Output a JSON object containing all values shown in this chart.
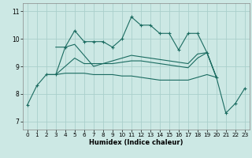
{
  "xlabel": "Humidex (Indice chaleur)",
  "xlim": [
    -0.5,
    23.5
  ],
  "ylim": [
    6.7,
    11.3
  ],
  "yticks": [
    7,
    8,
    9,
    10,
    11
  ],
  "xticks": [
    0,
    1,
    2,
    3,
    4,
    5,
    6,
    7,
    8,
    9,
    10,
    11,
    12,
    13,
    14,
    15,
    16,
    17,
    18,
    19,
    20,
    21,
    22,
    23
  ],
  "bg_color": "#cce8e4",
  "grid_color": "#aacfcb",
  "line_color": "#1a6b60",
  "line1": {
    "x": [
      0,
      1,
      2,
      3,
      4,
      5,
      6,
      7,
      8,
      9,
      10,
      11,
      12,
      13,
      14,
      15,
      16,
      17,
      18,
      19,
      20,
      21,
      22,
      23
    ],
    "y": [
      7.6,
      8.3,
      8.7,
      8.7,
      9.7,
      10.3,
      9.9,
      9.9,
      9.9,
      9.7,
      10.0,
      10.8,
      10.5,
      10.5,
      10.2,
      10.2,
      9.6,
      10.2,
      10.2,
      9.5,
      8.6,
      7.3,
      7.65,
      8.2
    ]
  },
  "line2": {
    "x": [
      2,
      3,
      4,
      5,
      6,
      7,
      8,
      9,
      10,
      11,
      12,
      13,
      14,
      15,
      16,
      17,
      18,
      19,
      20
    ],
    "y": [
      8.7,
      8.7,
      8.75,
      8.75,
      8.75,
      8.7,
      8.7,
      8.7,
      8.65,
      8.65,
      8.6,
      8.55,
      8.5,
      8.5,
      8.5,
      8.5,
      8.6,
      8.7,
      8.6
    ]
  },
  "line3": {
    "x": [
      2,
      3,
      4,
      5,
      6,
      7,
      8,
      9,
      10,
      11,
      12,
      13,
      14,
      15,
      16,
      17,
      18,
      19,
      20
    ],
    "y": [
      8.7,
      8.7,
      9.0,
      9.3,
      9.1,
      9.1,
      9.1,
      9.1,
      9.15,
      9.2,
      9.2,
      9.15,
      9.1,
      9.05,
      9.0,
      8.95,
      9.3,
      9.5,
      8.6
    ]
  },
  "line4": {
    "x": [
      3,
      4,
      5,
      6,
      7,
      8,
      9,
      10,
      11,
      12,
      13,
      14,
      15,
      16,
      17,
      18,
      19,
      20
    ],
    "y": [
      9.7,
      9.7,
      9.8,
      9.4,
      9.0,
      9.1,
      9.2,
      9.3,
      9.4,
      9.35,
      9.3,
      9.25,
      9.2,
      9.15,
      9.1,
      9.45,
      9.5,
      8.6
    ]
  }
}
